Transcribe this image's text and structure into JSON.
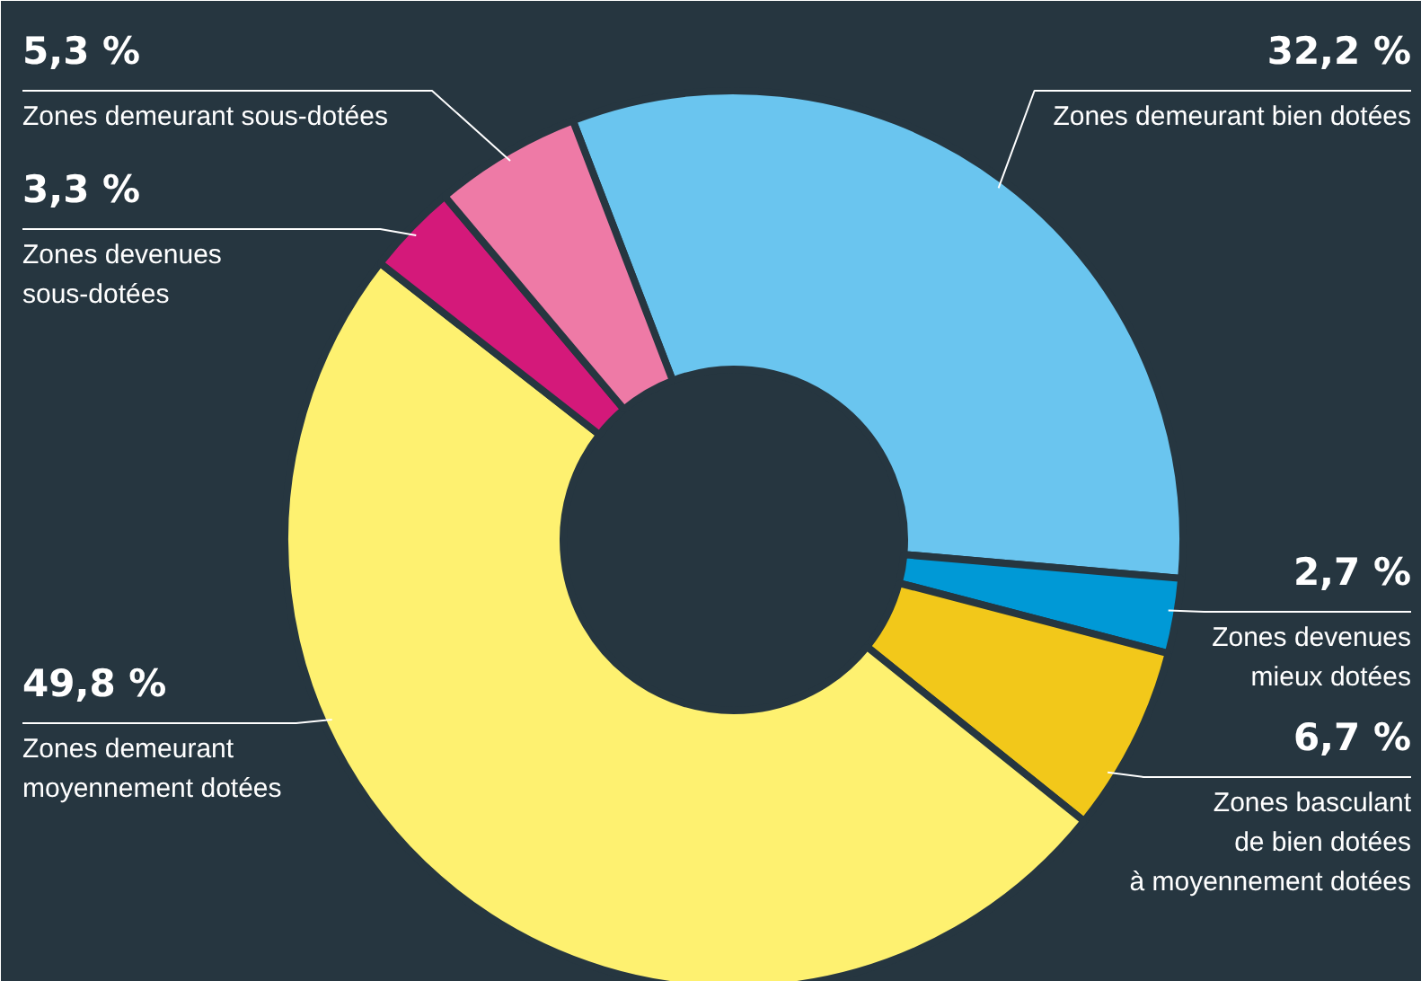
{
  "chart_data": {
    "type": "donut",
    "categories": [
      "Zones demeurant bien dotées",
      "Zones devenues\nmieux dotées",
      "Zones basculant\nde bien dotées\nà moyennement dotées",
      "Zones demeurant\nmoyennement dotées",
      "Zones devenues\nsous-dotées",
      "Zones demeurant sous-dotées"
    ],
    "values": [
      32.2,
      2.7,
      6.7,
      49.8,
      3.3,
      5.3
    ],
    "value_labels": [
      "32,2 %",
      "2,7 %",
      "6,7 %",
      "49,8 %",
      "3,3 %",
      "5,3 %"
    ],
    "colors": [
      "#6ac5ef",
      "#0099d6",
      "#f2c81a",
      "#fef170",
      "#d4197a",
      "#ee7aa6"
    ]
  }
}
